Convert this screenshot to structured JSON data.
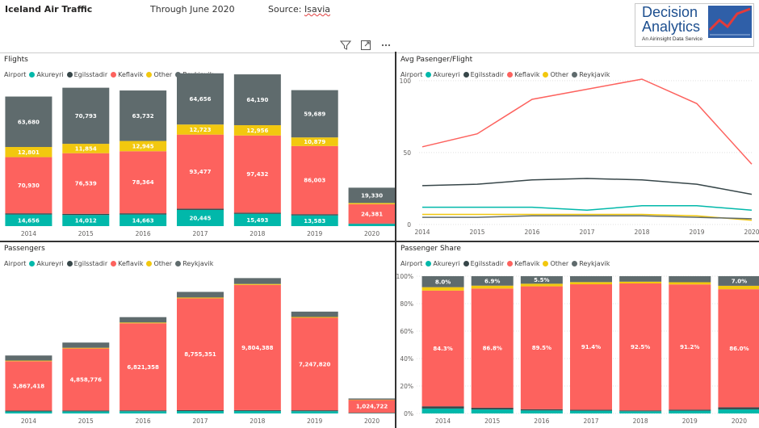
{
  "header": {
    "title": "Iceland Air Traffic",
    "through": "Through June 2020",
    "source_label": "Source:",
    "source_value": "Isavia"
  },
  "logo": {
    "line1": "Decision",
    "line2": "Analytics",
    "tagline": "An Airinsight Data Service"
  },
  "toolbar": {
    "icons": [
      "filter-icon",
      "focus-mode-icon",
      "more-options-icon"
    ]
  },
  "legend": {
    "title": "Airport",
    "items": [
      {
        "name": "Akureyri",
        "color": "#01B8AA"
      },
      {
        "name": "Egilsstadir",
        "color": "#374649"
      },
      {
        "name": "Keflavik",
        "color": "#FD625E"
      },
      {
        "name": "Other",
        "color": "#F2C80F"
      },
      {
        "name": "Reykjavik",
        "color": "#5F6B6D"
      }
    ]
  },
  "panels": {
    "flights": {
      "title": "Flights",
      "chart_data": {
        "type": "bar",
        "stacked": true,
        "categories": [
          "2014",
          "2015",
          "2016",
          "2017",
          "2018",
          "2019",
          "2020"
        ],
        "series": [
          {
            "name": "Akureyri",
            "values": [
              14656,
              14012,
              14663,
              20445,
              15493,
              13583,
              2800
            ],
            "labels": [
              "14,656",
              "14,012",
              "14,663",
              "20,445",
              "15,493",
              "13,583",
              ""
            ]
          },
          {
            "name": "Egilsstadir",
            "values": [
              1500,
              1500,
              1500,
              1600,
              1500,
              1500,
              500
            ],
            "labels": [
              "",
              "",
              "",
              "",
              "",
              "",
              ""
            ]
          },
          {
            "name": "Keflavik",
            "values": [
              70930,
              76539,
              78364,
              93477,
              97432,
              86003,
              24381
            ],
            "labels": [
              "70,930",
              "76,539",
              "78,364",
              "93,477",
              "97,432",
              "86,003",
              "24,381"
            ]
          },
          {
            "name": "Other",
            "values": [
              12801,
              11854,
              12945,
              12723,
              12956,
              10879,
              1500
            ],
            "labels": [
              "12,801",
              "11,854",
              "12,945",
              "12,723",
              "12,956",
              "10,879",
              ""
            ]
          },
          {
            "name": "Reykjavik",
            "values": [
              63680,
              70793,
              63732,
              64656,
              64190,
              59689,
              19330
            ],
            "labels": [
              "63,680",
              "70,793",
              "63,732",
              "64,656",
              "64,190",
              "59,689",
              "19,330"
            ]
          }
        ],
        "ylim": [
          0,
          210000
        ],
        "grid": false
      }
    },
    "avg": {
      "title": "Avg Pasenger/Flight",
      "chart_data": {
        "type": "line",
        "x": [
          "2014",
          "2015",
          "2016",
          "2017",
          "2018",
          "2019",
          "2020"
        ],
        "series": [
          {
            "name": "Akureyri",
            "values": [
              12,
              12,
              12,
              10,
              13,
              13,
              10
            ]
          },
          {
            "name": "Egilsstadir",
            "values": [
              27,
              28,
              31,
              32,
              31,
              28,
              21
            ]
          },
          {
            "name": "Keflavik",
            "values": [
              54,
              63,
              87,
              94,
              101,
              84,
              42
            ]
          },
          {
            "name": "Other",
            "values": [
              7,
              7,
              7,
              7,
              7,
              6,
              3
            ]
          },
          {
            "name": "Reykjavik",
            "values": [
              5,
              5,
              6,
              6,
              6,
              5,
              4
            ]
          }
        ],
        "yticks": [
          0,
          50,
          100
        ],
        "ylim": [
          0,
          110
        ],
        "grid": true
      }
    },
    "passengers": {
      "title": "Passengers",
      "chart_data": {
        "type": "bar",
        "stacked": true,
        "categories": [
          "2014",
          "2015",
          "2016",
          "2017",
          "2018",
          "2019",
          "2020"
        ],
        "series": [
          {
            "name": "Akureyri",
            "values": [
              160000,
              165000,
              175000,
              190000,
              195000,
              180000,
              35000
            ],
            "labels": [
              "",
              "",
              "",
              "",
              "",
              "",
              ""
            ]
          },
          {
            "name": "Egilsstadir",
            "values": [
              60000,
              62000,
              65000,
              67000,
              68000,
              66000,
              15000
            ],
            "labels": [
              "",
              "",
              "",
              "",
              "",
              "",
              ""
            ]
          },
          {
            "name": "Keflavik",
            "values": [
              3867418,
              4858776,
              6821358,
              8755351,
              9804388,
              7247820,
              1024722
            ],
            "labels": [
              "3,867,418",
              "4,858,776",
              "6,821,358",
              "8,755,351",
              "9,804,388",
              "7,247,820",
              "1,024,722"
            ]
          },
          {
            "name": "Other",
            "values": [
              50000,
              55000,
              60000,
              65000,
              70000,
              60000,
              10000
            ],
            "labels": [
              "",
              "",
              "",
              "",
              "",
              "",
              ""
            ]
          },
          {
            "name": "Reykjavik",
            "values": [
              400000,
              410000,
              420000,
              440000,
              460000,
              420000,
              90000
            ],
            "labels": [
              "",
              "",
              "",
              "",
              "",
              "",
              ""
            ]
          }
        ],
        "ylim": [
          0,
          11000000
        ],
        "grid": false
      }
    },
    "share": {
      "title": "Passenger Share",
      "chart_data": {
        "type": "bar",
        "stacked": true,
        "percent": true,
        "categories": [
          "2014",
          "2015",
          "2016",
          "2017",
          "2018",
          "2019",
          "2020"
        ],
        "series": [
          {
            "name": "Akureyri",
            "values": [
              3.6,
              3.0,
              2.2,
              2.0,
              1.6,
              2.0,
              3.0
            ],
            "labels": [
              "",
              "",
              "",
              "",
              "",
              "",
              ""
            ]
          },
          {
            "name": "Egilsstadir",
            "values": [
              1.6,
              1.2,
              0.9,
              0.7,
              0.6,
              0.8,
              1.5
            ],
            "labels": [
              "",
              "",
              "",
              "",
              "",
              "",
              ""
            ]
          },
          {
            "name": "Keflavik",
            "values": [
              84.3,
              86.8,
              89.5,
              91.4,
              92.5,
              91.2,
              86.0
            ],
            "labels": [
              "84.3%",
              "86.8%",
              "89.5%",
              "91.4%",
              "92.5%",
              "91.2%",
              "86.0%"
            ]
          },
          {
            "name": "Other",
            "values": [
              2.5,
              2.1,
              1.9,
              1.6,
              1.3,
              1.6,
              2.5
            ],
            "labels": [
              "",
              "",
              "",
              "",
              "",
              "",
              ""
            ]
          },
          {
            "name": "Reykjavik",
            "values": [
              8.0,
              6.9,
              5.5,
              4.3,
              4.0,
              4.4,
              7.0
            ],
            "labels": [
              "8.0%",
              "6.9%",
              "5.5%",
              "",
              "",
              "",
              "7.0%"
            ]
          }
        ],
        "yticks": [
          "0%",
          "20%",
          "40%",
          "60%",
          "80%",
          "100%"
        ],
        "ylim": [
          0,
          100
        ],
        "grid": true
      }
    }
  }
}
